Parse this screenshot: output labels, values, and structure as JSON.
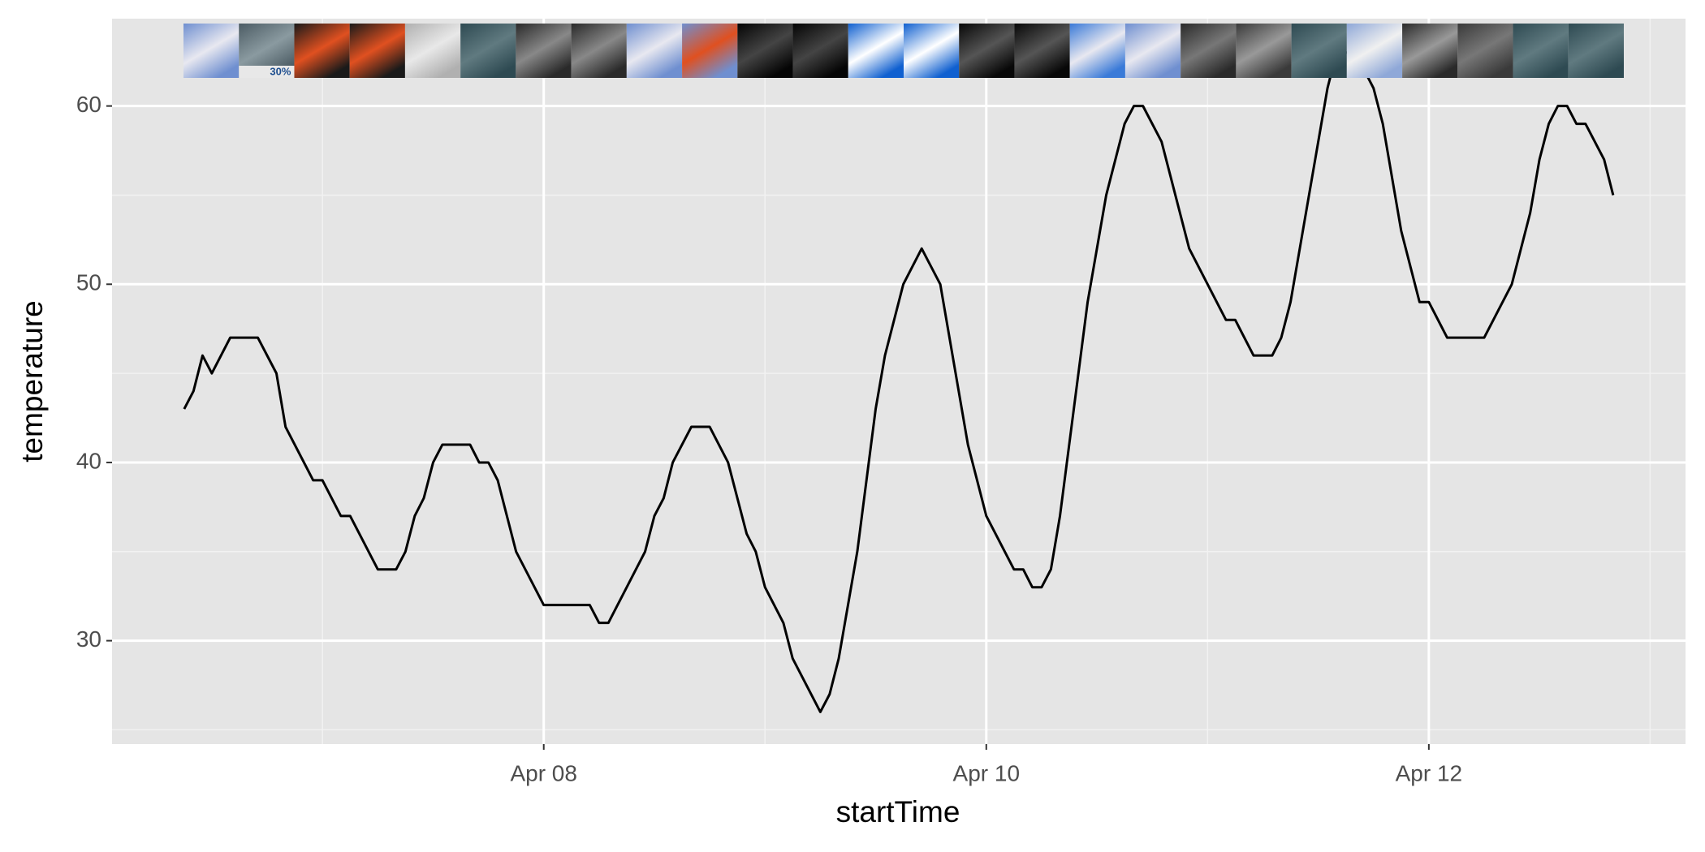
{
  "chart_data": {
    "type": "line",
    "xlabel": "startTime",
    "ylabel": "temperature",
    "icon_label": "30%",
    "x": [
      6.375,
      6.417,
      6.458,
      6.5,
      6.583,
      6.708,
      6.792,
      6.833,
      6.958,
      7,
      7.083,
      7.125,
      7.25,
      7.333,
      7.375,
      7.417,
      7.458,
      7.5,
      7.542,
      7.667,
      7.708,
      7.75,
      7.792,
      7.875,
      8,
      8.208,
      8.25,
      8.292,
      8.458,
      8.5,
      8.542,
      8.583,
      8.667,
      8.75,
      8.833,
      8.917,
      8.958,
      9,
      9.083,
      9.125,
      9.25,
      9.292,
      9.333,
      9.417,
      9.5,
      9.542,
      9.625,
      9.708,
      9.792,
      9.917,
      10,
      10.125,
      10.167,
      10.208,
      10.25,
      10.292,
      10.333,
      10.458,
      10.542,
      10.625,
      10.667,
      10.708,
      10.792,
      10.917,
      11.083,
      11.125,
      11.208,
      11.292,
      11.333,
      11.375,
      11.542,
      11.583,
      11.667,
      11.75,
      11.792,
      11.875,
      11.958,
      12,
      12.083,
      12.25,
      12.375,
      12.458,
      12.5,
      12.542,
      12.583,
      12.625,
      12.667,
      12.708,
      12.792,
      12.833
    ],
    "series": [
      {
        "color": "#000000",
        "values": [
          43,
          44,
          46,
          45,
          47,
          47,
          45,
          42,
          39,
          39,
          37,
          37,
          34,
          34,
          35,
          37,
          38,
          40,
          41,
          41,
          40,
          40,
          39,
          35,
          32,
          32,
          31,
          31,
          35,
          37,
          38,
          40,
          42,
          42,
          40,
          36,
          35,
          33,
          31,
          29,
          26,
          27,
          29,
          35,
          43,
          46,
          50,
          52,
          50,
          41,
          37,
          34,
          34,
          33,
          33,
          34,
          37,
          49,
          55,
          59,
          60,
          60,
          58,
          52,
          48,
          48,
          46,
          46,
          47,
          49,
          61,
          63,
          63,
          61,
          59,
          53,
          49,
          49,
          47,
          47,
          50,
          54,
          57,
          59,
          60,
          60,
          59,
          59,
          57,
          55
        ]
      }
    ],
    "xlim": [
      6.049,
      13.16
    ],
    "xticks": [
      {
        "value": 8,
        "label": "Apr 08"
      },
      {
        "value": 10,
        "label": "Apr 10"
      },
      {
        "value": 12,
        "label": "Apr 12"
      }
    ],
    "minor_xticks": [
      7,
      9,
      11,
      13
    ],
    "ylim": [
      24.2,
      64.9
    ],
    "yticks": [
      30,
      40,
      50,
      60
    ],
    "minor_yticks": [
      25,
      35,
      45,
      55
    ],
    "grid": true
  }
}
